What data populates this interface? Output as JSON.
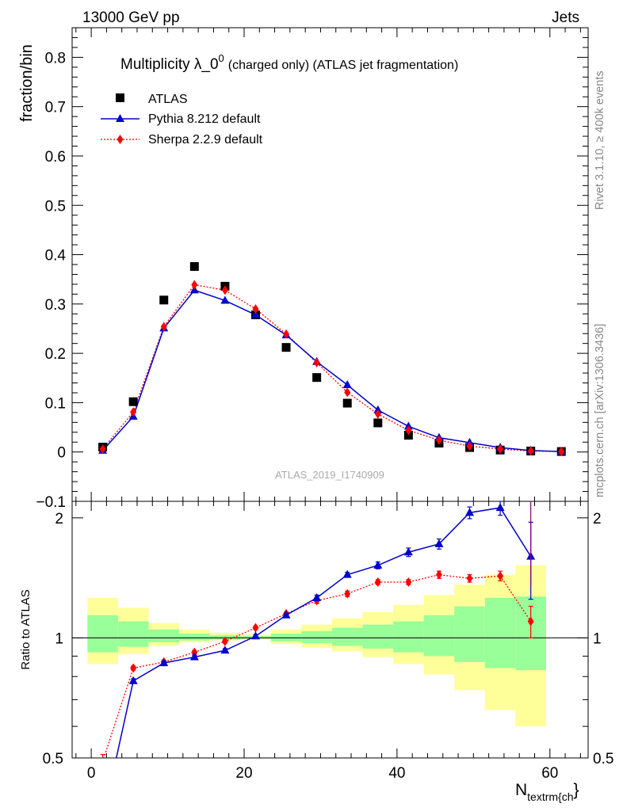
{
  "header": {
    "left": "13000 GeV pp",
    "right": "Jets"
  },
  "side": {
    "rivet": "Rivet 3.1.10, ≥ 400k events",
    "mcplots": "mcplots.cern.ch [arXiv:1306.3436]"
  },
  "chart_data": {
    "type": "scatter",
    "title": "Multiplicity λ_0",
    "title_sup": "0",
    "title_suffix": "(charged only) (ATLAS jet fragmentation)",
    "ylabel": "fraction/bin",
    "ratio_ylabel": "Ratio to ATLAS",
    "xlabel": "N",
    "xlabel_sub": "textrm{ch",
    "xlabel_close": "}",
    "watermark": "ATLAS_2019_I1740909",
    "xlim": [
      -2.5,
      65
    ],
    "ylim": [
      -0.1,
      0.86
    ],
    "ratio_ylim": [
      0.5,
      2.2
    ],
    "x_ticks": [
      0,
      20,
      40,
      60
    ],
    "x_tick_labels": [
      "0",
      "20",
      "40",
      "60"
    ],
    "y_ticks": [
      -0.1,
      0,
      0.1,
      0.2,
      0.3,
      0.4,
      0.5,
      0.6,
      0.7,
      0.8
    ],
    "y_tick_labels": [
      "−0.1",
      "0",
      "0.1",
      "0.2",
      "0.3",
      "0.4",
      "0.5",
      "0.6",
      "0.7",
      "0.8"
    ],
    "ratio_ticks": [
      0.5,
      1,
      2
    ],
    "ratio_tick_labels": [
      "0.5",
      "1",
      "2"
    ],
    "x": [
      1.5,
      5.5,
      9.5,
      13.5,
      17.5,
      21.5,
      25.5,
      29.5,
      33.5,
      37.5,
      41.5,
      45.5,
      49.5,
      53.5,
      57.5,
      61.5
    ],
    "series": [
      {
        "name": "ATLAS",
        "color": "#000000",
        "values": [
          0.01,
          0.102,
          0.308,
          0.376,
          0.336,
          0.278,
          0.212,
          0.151,
          0.099,
          0.059,
          0.034,
          0.018,
          0.009,
          0.004,
          0.002,
          0.001
        ]
      },
      {
        "name": "Pythia 8.212 default",
        "color": "#0000cc",
        "values": [
          0.003,
          0.072,
          0.251,
          0.328,
          0.307,
          0.278,
          0.237,
          0.183,
          0.136,
          0.085,
          0.052,
          0.029,
          0.019,
          0.009,
          0.003,
          0.001
        ],
        "ratio": [
          0.35,
          0.78,
          0.865,
          0.895,
          0.93,
          1.01,
          1.14,
          1.26,
          1.44,
          1.52,
          1.64,
          1.72,
          2.06,
          2.12,
          1.6,
          null
        ]
      },
      {
        "name": "Sherpa 2.2.9 default",
        "color": "#ff0000",
        "values": [
          0.006,
          0.081,
          0.254,
          0.339,
          0.328,
          0.29,
          0.239,
          0.181,
          0.121,
          0.077,
          0.044,
          0.024,
          0.012,
          0.006,
          0.002,
          0.001
        ],
        "ratio": [
          0.49,
          0.84,
          0.87,
          0.92,
          0.98,
          1.06,
          1.15,
          1.24,
          1.29,
          1.38,
          1.38,
          1.44,
          1.41,
          1.43,
          1.1,
          null
        ]
      }
    ],
    "ratio_errors": {
      "pythia": [
        0,
        0.01,
        0.01,
        0.01,
        0.01,
        0.01,
        0.01,
        0.02,
        0.02,
        0.03,
        0.04,
        0.05,
        0.07,
        0.09,
        0.35,
        0
      ],
      "sherpa": [
        0.02,
        0.01,
        0.01,
        0.01,
        0.01,
        0.01,
        0.01,
        0.02,
        0.02,
        0.02,
        0.02,
        0.03,
        0.03,
        0.04,
        0.1,
        0
      ]
    },
    "bands": {
      "edges": [
        -0.5,
        3.5,
        7.5,
        11.5,
        15.5,
        19.5,
        23.5,
        27.5,
        31.5,
        35.5,
        39.5,
        43.5,
        47.5,
        51.5,
        55.5,
        59.5
      ],
      "yellow_lo": [
        0.86,
        0.91,
        0.955,
        0.975,
        0.985,
        0.99,
        0.965,
        0.945,
        0.925,
        0.895,
        0.86,
        0.81,
        0.74,
        0.66,
        0.6
      ],
      "yellow_hi": [
        1.26,
        1.19,
        1.09,
        1.05,
        1.03,
        1.02,
        1.05,
        1.08,
        1.12,
        1.16,
        1.21,
        1.28,
        1.36,
        1.44,
        1.52
      ],
      "green_lo": [
        0.92,
        0.95,
        0.975,
        0.985,
        0.99,
        0.995,
        0.98,
        0.97,
        0.955,
        0.94,
        0.92,
        0.9,
        0.87,
        0.84,
        0.83
      ],
      "green_hi": [
        1.14,
        1.1,
        1.05,
        1.025,
        1.015,
        1.01,
        1.025,
        1.04,
        1.06,
        1.08,
        1.1,
        1.14,
        1.2,
        1.26,
        1.27
      ]
    }
  }
}
